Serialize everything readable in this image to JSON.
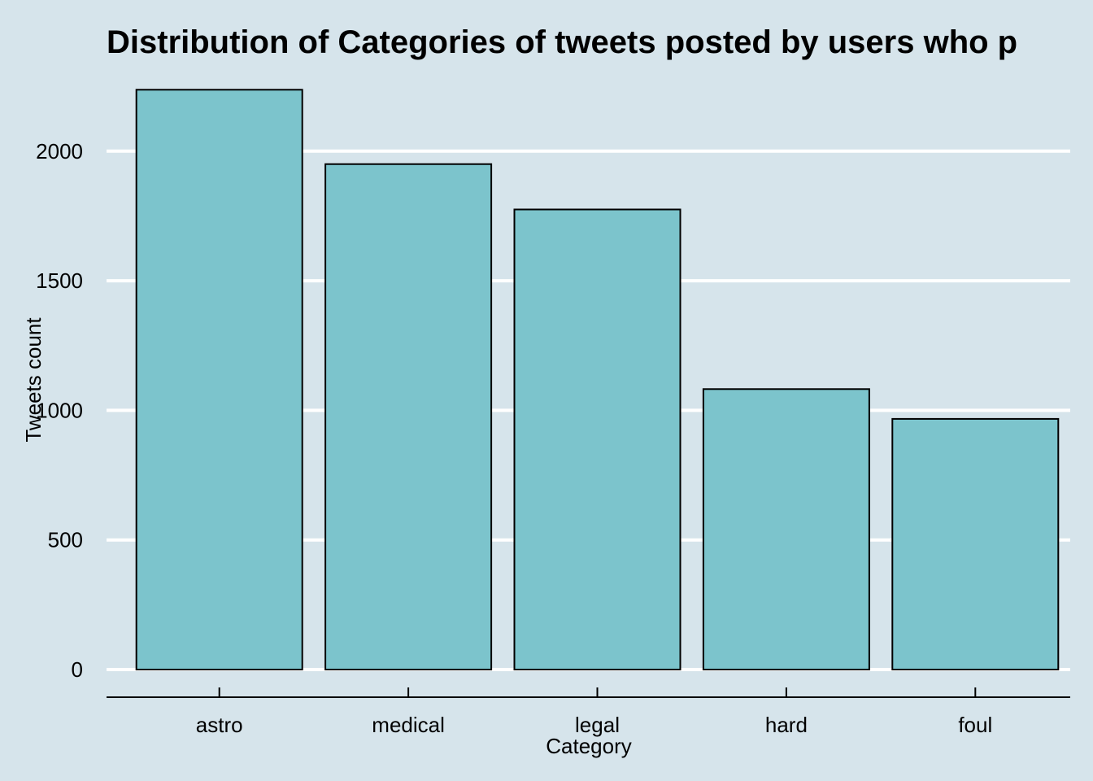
{
  "chart_data": {
    "type": "bar",
    "title": "Distribution of Categories of tweets posted by users who p",
    "xlabel": "Category",
    "ylabel": "Tweets count",
    "categories": [
      "astro",
      "medical",
      "legal",
      "hard",
      "foul"
    ],
    "values": [
      2237,
      1950,
      1775,
      1082,
      967
    ],
    "ylim": [
      0,
      2237
    ],
    "yticks": [
      "0",
      "500",
      "1000",
      "1500",
      "2000"
    ],
    "grid": "horizontal",
    "colors": {
      "background": "#d6e4eb",
      "bar_fill": "#7cc4cc",
      "bar_stroke": "#000000",
      "grid": "#ffffff"
    }
  }
}
